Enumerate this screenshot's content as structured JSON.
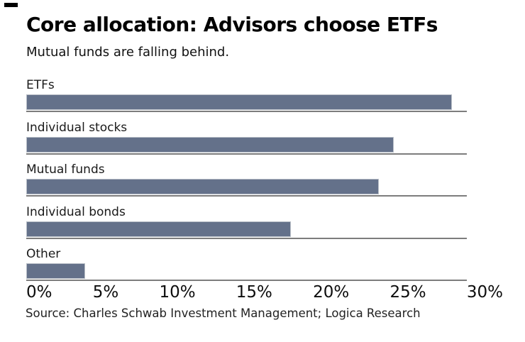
{
  "header": {
    "title": "Core allocation: Advisors choose ETFs",
    "subtitle": "Mutual funds are falling behind."
  },
  "chart_data": {
    "type": "bar",
    "orientation": "horizontal",
    "title": "Core allocation: Advisors choose ETFs",
    "subtitle": "Mutual funds are falling behind.",
    "categories": [
      "ETFs",
      "Individual stocks",
      "Mutual funds",
      "Individual bonds",
      "Other"
    ],
    "values": [
      29,
      25,
      24,
      18,
      4
    ],
    "unit": "%",
    "xlabel": "",
    "ylabel": "",
    "xlim": [
      0,
      30
    ],
    "x_ticks": [
      "0%",
      "5%",
      "10%",
      "15%",
      "20%",
      "25%",
      "30%"
    ],
    "grid": false,
    "legend": false,
    "bar_color": "#64718a",
    "bar_border_color": "#b9bfc7",
    "baseline_color": "#7d7d7d",
    "corner_dash_color": "#000000"
  },
  "footer": {
    "source": "Source: Charles Schwab Investment Management; Logica Research"
  }
}
